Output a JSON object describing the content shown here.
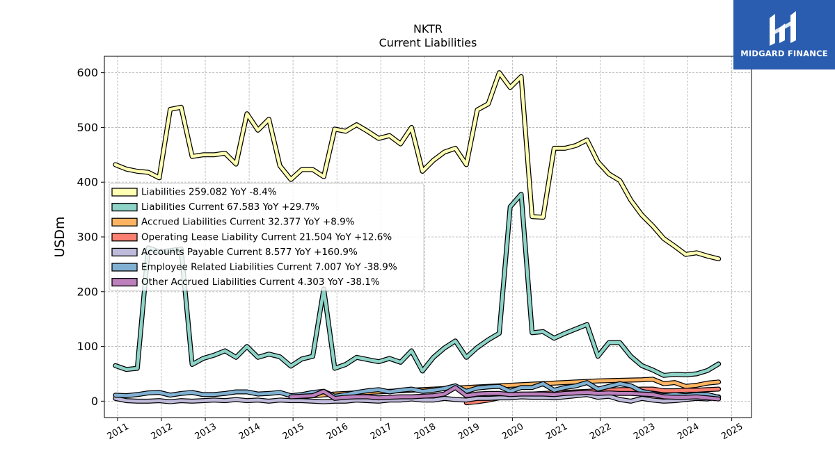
{
  "chart_data": {
    "type": "line",
    "title": "NKTR",
    "subtitle": "Current  Liabilities",
    "ylabel": "USDm",
    "xlabel": "",
    "ylim": [
      -30,
      630
    ],
    "xlim": [
      2010.7,
      2025.45
    ],
    "yticks": [
      0,
      100,
      200,
      300,
      400,
      500,
      600
    ],
    "xticks": [
      "2011",
      "2012",
      "2013",
      "2014",
      "2015",
      "2016",
      "2017",
      "2018",
      "2019",
      "2020",
      "2021",
      "2022",
      "2023",
      "2024",
      "2025"
    ],
    "grid": true,
    "legend_position": "center-left",
    "series": [
      {
        "name": "Liabilities",
        "legend": "Liabilities  259.082 YoY -8.4%",
        "color": "#ffffb3",
        "x": [
          2010.95,
          2011.2,
          2011.45,
          2011.7,
          2011.95,
          2012.2,
          2012.45,
          2012.7,
          2012.95,
          2013.2,
          2013.45,
          2013.7,
          2013.95,
          2014.2,
          2014.45,
          2014.7,
          2014.95,
          2015.2,
          2015.45,
          2015.7,
          2015.95,
          2016.2,
          2016.45,
          2016.7,
          2016.95,
          2017.2,
          2017.45,
          2017.7,
          2017.95,
          2018.2,
          2018.45,
          2018.7,
          2018.95,
          2019.2,
          2019.45,
          2019.7,
          2019.95,
          2020.2,
          2020.45,
          2020.7,
          2020.95,
          2021.2,
          2021.45,
          2021.7,
          2021.95,
          2022.2,
          2022.45,
          2022.7,
          2022.95,
          2023.2,
          2023.45,
          2023.7,
          2023.95,
          2024.2,
          2024.45,
          2024.7
        ],
        "y": [
          432,
          424,
          420,
          418,
          408,
          533,
          537,
          447,
          450,
          450,
          453,
          433,
          525,
          495,
          515,
          430,
          405,
          423,
          423,
          410,
          497,
          493,
          505,
          493,
          480,
          485,
          470,
          500,
          420,
          440,
          455,
          462,
          432,
          532,
          543,
          600,
          573,
          593,
          337,
          336,
          462,
          462,
          467,
          477,
          437,
          415,
          403,
          367,
          340,
          320,
          297,
          283,
          268,
          271,
          265,
          260
        ]
      },
      {
        "name": "Liabilities Current",
        "legend": "Liabilities Current  67.583 YoY +29.7%",
        "color": "#8dd3c7",
        "x": [
          2010.95,
          2011.2,
          2011.45,
          2011.7,
          2011.95,
          2012.2,
          2012.45,
          2012.7,
          2012.95,
          2013.2,
          2013.45,
          2013.7,
          2013.95,
          2014.2,
          2014.45,
          2014.7,
          2014.95,
          2015.2,
          2015.45,
          2015.7,
          2015.95,
          2016.2,
          2016.45,
          2016.7,
          2016.95,
          2017.2,
          2017.45,
          2017.7,
          2017.95,
          2018.2,
          2018.45,
          2018.7,
          2018.95,
          2019.2,
          2019.45,
          2019.7,
          2019.95,
          2020.2,
          2020.45,
          2020.7,
          2020.95,
          2021.2,
          2021.45,
          2021.7,
          2021.95,
          2022.2,
          2022.45,
          2022.7,
          2022.95,
          2023.2,
          2023.45,
          2023.7,
          2023.95,
          2024.2,
          2024.45,
          2024.7
        ],
        "y": [
          65,
          58,
          60,
          280,
          273,
          275,
          278,
          67,
          78,
          84,
          92,
          80,
          100,
          80,
          86,
          81,
          64,
          77,
          82,
          205,
          60,
          67,
          80,
          76,
          72,
          78,
          71,
          92,
          55,
          80,
          97,
          110,
          80,
          98,
          112,
          124,
          355,
          378,
          125,
          127,
          115,
          124,
          132,
          140,
          82,
          107,
          107,
          82,
          65,
          57,
          47,
          49,
          48,
          50,
          56,
          68
        ]
      },
      {
        "name": "Accrued Liabilities Current",
        "legend": "Accrued Liabilities Current  32.377 YoY +8.9%",
        "color": "#fdb462",
        "x": [
          2014.95,
          2015.45,
          2015.95,
          2016.45,
          2016.95,
          2017.45,
          2017.95,
          2018.45,
          2018.95,
          2019.45,
          2019.95,
          2020.45,
          2020.95,
          2021.45,
          2021.95,
          2022.45,
          2022.95,
          2023.2,
          2023.45,
          2023.7,
          2023.95,
          2024.2,
          2024.45,
          2024.7
        ],
        "y": [
          8,
          10,
          13,
          15,
          17,
          19,
          21,
          23,
          25,
          27,
          29,
          31,
          33,
          35,
          37,
          38,
          39,
          40,
          32,
          34,
          27,
          29,
          33,
          35
        ]
      },
      {
        "name": "Operating Lease Liability Current",
        "legend": "Operating Lease Liability Current  21.504 YoY +12.6%",
        "color": "#fb8072",
        "x": [
          2018.95,
          2019.2,
          2019.45,
          2019.7,
          2019.95,
          2020.2,
          2020.45,
          2020.7,
          2020.95,
          2021.2,
          2021.45,
          2021.7,
          2021.95,
          2022.2,
          2022.45,
          2022.7,
          2022.95,
          2023.2,
          2023.45,
          2023.7,
          2023.95,
          2024.2,
          2024.45,
          2024.7
        ],
        "y": [
          -3,
          -1,
          2,
          6,
          10,
          12,
          13,
          14,
          15,
          16,
          17,
          18,
          19,
          20,
          21,
          21,
          22,
          22,
          19,
          19,
          20,
          20,
          21,
          22
        ]
      },
      {
        "name": "Accounts Payable Current",
        "legend": "Accounts Payable Current  8.577 YoY +160.9%",
        "color": "#bebada",
        "x": [
          2010.95,
          2011.2,
          2011.45,
          2011.7,
          2011.95,
          2012.2,
          2012.45,
          2012.7,
          2012.95,
          2013.2,
          2013.45,
          2013.7,
          2013.95,
          2014.2,
          2014.45,
          2014.7,
          2014.95,
          2015.2,
          2015.45,
          2015.7,
          2015.95,
          2016.2,
          2016.45,
          2016.7,
          2016.95,
          2017.2,
          2017.45,
          2017.7,
          2017.95,
          2018.2,
          2018.45,
          2018.7,
          2018.95,
          2019.2,
          2019.45,
          2019.7,
          2019.95,
          2020.2,
          2020.45,
          2020.7,
          2020.95,
          2021.2,
          2021.45,
          2021.7,
          2021.95,
          2022.2,
          2022.45,
          2022.7,
          2022.95,
          2023.2,
          2023.45,
          2023.7,
          2023.95,
          2024.2,
          2024.45,
          2024.7
        ],
        "y": [
          5,
          1,
          0,
          0,
          1,
          -1,
          1,
          0,
          1,
          2,
          1,
          3,
          1,
          2,
          0,
          2,
          1,
          1,
          0,
          -1,
          0,
          0,
          2,
          1,
          0,
          2,
          2,
          4,
          2,
          2,
          5,
          3,
          2,
          5,
          5,
          6,
          6,
          8,
          7,
          7,
          6,
          8,
          10,
          12,
          7,
          9,
          3,
          0,
          5,
          2,
          0,
          1,
          3,
          5,
          4,
          8
        ]
      },
      {
        "name": "Employee Related Liabilities Current",
        "legend": "Employee Related Liabilities Current  7.007 YoY -38.9%",
        "color": "#80b1d3",
        "x": [
          2010.95,
          2011.2,
          2011.45,
          2011.7,
          2011.95,
          2012.2,
          2012.45,
          2012.7,
          2012.95,
          2013.2,
          2013.45,
          2013.7,
          2013.95,
          2014.2,
          2014.45,
          2014.7,
          2014.95,
          2015.2,
          2015.45,
          2015.7,
          2015.95,
          2016.2,
          2016.45,
          2016.7,
          2016.95,
          2017.2,
          2017.45,
          2017.7,
          2017.95,
          2018.2,
          2018.45,
          2018.7,
          2018.95,
          2019.2,
          2019.45,
          2019.7,
          2019.95,
          2020.2,
          2020.45,
          2020.7,
          2020.95,
          2021.2,
          2021.45,
          2021.7,
          2021.95,
          2022.2,
          2022.45,
          2022.7,
          2022.95,
          2023.2,
          2023.45,
          2023.7,
          2023.95,
          2024.2,
          2024.45,
          2024.7
        ],
        "y": [
          11,
          10,
          12,
          15,
          16,
          11,
          14,
          16,
          12,
          12,
          14,
          17,
          17,
          13,
          14,
          16,
          10,
          12,
          16,
          18,
          9,
          12,
          16,
          19,
          21,
          17,
          20,
          22,
          18,
          20,
          23,
          28,
          18,
          24,
          26,
          27,
          18,
          25,
          25,
          32,
          20,
          25,
          28,
          34,
          22,
          27,
          32,
          28,
          18,
          14,
          10,
          12,
          10,
          12,
          12,
          7
        ]
      },
      {
        "name": "Other Accrued Liabilities Current",
        "legend": "Other Accrued Liabilities Current  4.303 YoY -38.1%",
        "color": "#bc80bd",
        "x": [
          2014.95,
          2015.2,
          2015.45,
          2015.7,
          2015.95,
          2016.2,
          2016.45,
          2016.7,
          2016.95,
          2017.2,
          2017.45,
          2017.7,
          2017.95,
          2018.2,
          2018.45,
          2018.7,
          2018.95,
          2019.2,
          2019.45,
          2019.7,
          2019.95,
          2020.2,
          2020.45,
          2020.7,
          2020.95,
          2021.2,
          2021.45,
          2021.7,
          2021.95,
          2022.2,
          2022.45,
          2022.7,
          2022.95,
          2023.2,
          2023.45,
          2023.7,
          2023.95,
          2024.2,
          2024.45,
          2024.7
        ],
        "y": [
          8,
          9,
          10,
          18,
          5,
          7,
          8,
          8,
          6,
          7,
          8,
          8,
          9,
          10,
          13,
          25,
          10,
          13,
          14,
          14,
          12,
          13,
          13,
          13,
          12,
          14,
          15,
          16,
          14,
          15,
          14,
          14,
          13,
          12,
          8,
          7,
          7,
          8,
          6,
          4
        ]
      }
    ]
  },
  "logo": {
    "text": "MIDGARD FINANCE"
  }
}
